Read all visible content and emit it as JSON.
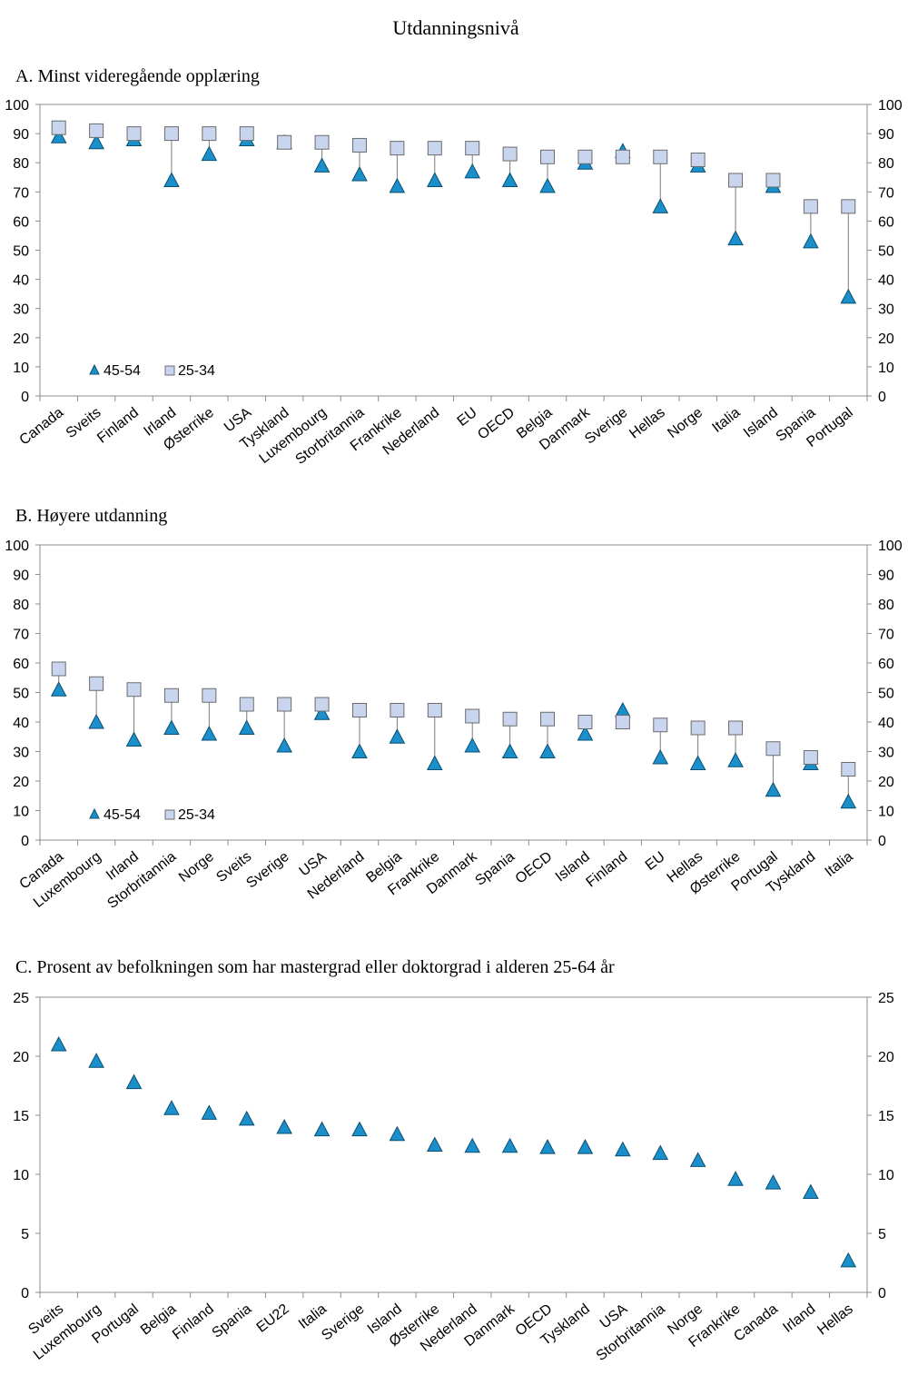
{
  "figure_title": "Utdanningsnivå",
  "chart_data": [
    {
      "type": "scatter",
      "title": "A. Minst videregående opplæring",
      "ylim": [
        0,
        100
      ],
      "yticks": [
        0,
        10,
        20,
        30,
        40,
        50,
        60,
        70,
        80,
        90,
        100
      ],
      "categories": [
        "Canada",
        "Sveits",
        "Finland",
        "Irland",
        "Østerrike",
        "USA",
        "Tyskland",
        "Luxembourg",
        "Storbritannia",
        "Frankrike",
        "Nederland",
        "EU",
        "OECD",
        "Belgia",
        "Danmark",
        "Sverige",
        "Hellas",
        "Norge",
        "Italia",
        "Island",
        "Spania",
        "Portugal"
      ],
      "series": [
        {
          "name": "45-54",
          "marker": "triangle",
          "values": [
            89,
            87,
            88,
            74,
            83,
            88,
            87,
            79,
            76,
            72,
            74,
            77,
            74,
            72,
            80,
            84,
            65,
            79,
            54,
            72,
            53,
            34
          ]
        },
        {
          "name": "25-34",
          "marker": "square",
          "values": [
            92,
            91,
            90,
            90,
            90,
            90,
            87,
            87,
            86,
            85,
            85,
            85,
            83,
            82,
            82,
            82,
            82,
            81,
            74,
            74,
            65,
            65
          ]
        }
      ],
      "legend": "bottom-left",
      "connectors": true
    },
    {
      "type": "scatter",
      "title": "B. Høyere utdanning",
      "ylim": [
        0,
        100
      ],
      "yticks": [
        0,
        10,
        20,
        30,
        40,
        50,
        60,
        70,
        80,
        90,
        100
      ],
      "categories": [
        "Canada",
        "Luxembourg",
        "Irland",
        "Storbritannia",
        "Norge",
        "Sveits",
        "Sverige",
        "USA",
        "Nederland",
        "Belgia",
        "Frankrike",
        "Danmark",
        "Spania",
        "OECD",
        "Island",
        "Finland",
        "EU",
        "Hellas",
        "Østerrike",
        "Portugal",
        "Tyskland",
        "Italia"
      ],
      "series": [
        {
          "name": "45-54",
          "marker": "triangle",
          "values": [
            51,
            40,
            34,
            38,
            36,
            38,
            32,
            43,
            30,
            35,
            26,
            32,
            30,
            30,
            36,
            44,
            28,
            26,
            27,
            17,
            26,
            13
          ]
        },
        {
          "name": "25-34",
          "marker": "square",
          "values": [
            58,
            53,
            51,
            49,
            49,
            46,
            46,
            46,
            44,
            44,
            44,
            42,
            41,
            41,
            40,
            40,
            39,
            38,
            38,
            31,
            28,
            24
          ]
        }
      ],
      "legend": "bottom-left",
      "connectors": true
    },
    {
      "type": "scatter",
      "title": "C. Prosent av befolkningen som har mastergrad eller doktorgrad i alderen 25-64 år",
      "ylim": [
        0,
        25
      ],
      "yticks": [
        0,
        5,
        10,
        15,
        20,
        25
      ],
      "categories": [
        "Sveits",
        "Luxembourg",
        "Portugal",
        "Belgia",
        "Finland",
        "Spania",
        "EU22",
        "Italia",
        "Sverige",
        "Island",
        "Østerrike",
        "Nederland",
        "Danmark",
        "OECD",
        "Tyskland",
        "USA",
        "Storbritannia",
        "Norge",
        "Frankrike",
        "Canada",
        "Irland",
        "Hellas"
      ],
      "series": [
        {
          "name": "25-64",
          "marker": "triangle",
          "values": [
            21.0,
            19.6,
            17.8,
            15.6,
            15.2,
            14.7,
            14.0,
            13.8,
            13.8,
            13.4,
            12.5,
            12.4,
            12.4,
            12.3,
            12.3,
            12.1,
            11.8,
            11.2,
            9.6,
            9.3,
            8.5,
            2.7
          ]
        }
      ],
      "legend": "none",
      "connectors": false
    }
  ],
  "colors": {
    "triangle_fill": "#1a8fc9",
    "triangle_stroke": "#0b4f73",
    "square_fill": "#c9d4ee",
    "square_stroke": "#6b6b6b",
    "axis": "#8c8c8c",
    "connector": "#7a7a7a"
  }
}
